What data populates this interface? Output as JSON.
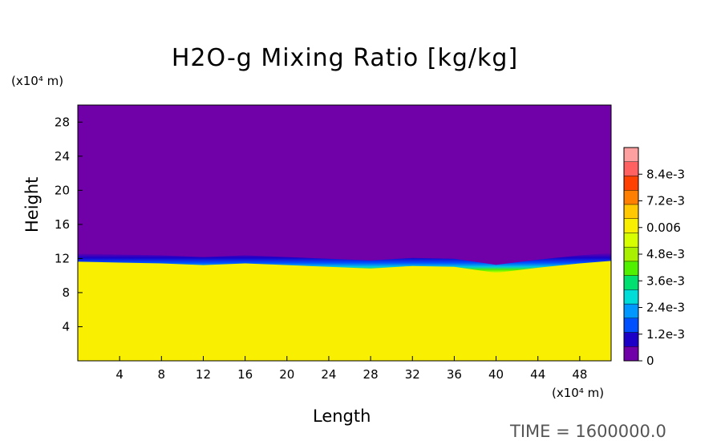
{
  "chart_data": {
    "type": "heatmap",
    "title": "H2O-g Mixing Ratio [kg/kg]",
    "xlabel": "Length",
    "ylabel": "Height",
    "x_unit": "(x10⁴ m)",
    "y_unit": "(x10⁴ m)",
    "xlim": [
      0,
      51
    ],
    "ylim": [
      0,
      30
    ],
    "x_ticks": [
      "4",
      "8",
      "12",
      "16",
      "20",
      "24",
      "28",
      "32",
      "36",
      "40",
      "44",
      "48"
    ],
    "y_ticks": [
      "4",
      "8",
      "12",
      "16",
      "20",
      "24",
      "28"
    ],
    "colorbar": {
      "range": [
        0,
        0.0096
      ],
      "tick_labels": [
        "0",
        "1.2e-3",
        "2.4e-3",
        "3.6e-3",
        "4.8e-3",
        "0.006",
        "7.2e-3",
        "8.4e-3"
      ],
      "tick_values": [
        0,
        0.0012,
        0.0024,
        0.0036,
        0.0048,
        0.006,
        0.0072,
        0.0084
      ],
      "colors": [
        "#7000a8",
        "#1c00c8",
        "#0050ff",
        "#0098ff",
        "#00dcd8",
        "#00e070",
        "#50f000",
        "#a8f000",
        "#d8ff00",
        "#f8f000",
        "#ffc800",
        "#ff8000",
        "#ff4000",
        "#ff6060",
        "#ffa0a0"
      ]
    },
    "fields": {
      "upper_value": 0,
      "lower_value": 0.0059,
      "interface_height_profile": {
        "x": [
          0,
          4,
          8,
          12,
          16,
          20,
          24,
          28,
          32,
          36,
          40,
          44,
          48,
          51
        ],
        "y": [
          12.0,
          11.9,
          11.8,
          11.6,
          11.8,
          11.6,
          11.4,
          11.2,
          11.5,
          11.4,
          10.7,
          11.3,
          11.8,
          12.1
        ]
      }
    }
  },
  "time_label": "TIME  =  1600000.0"
}
